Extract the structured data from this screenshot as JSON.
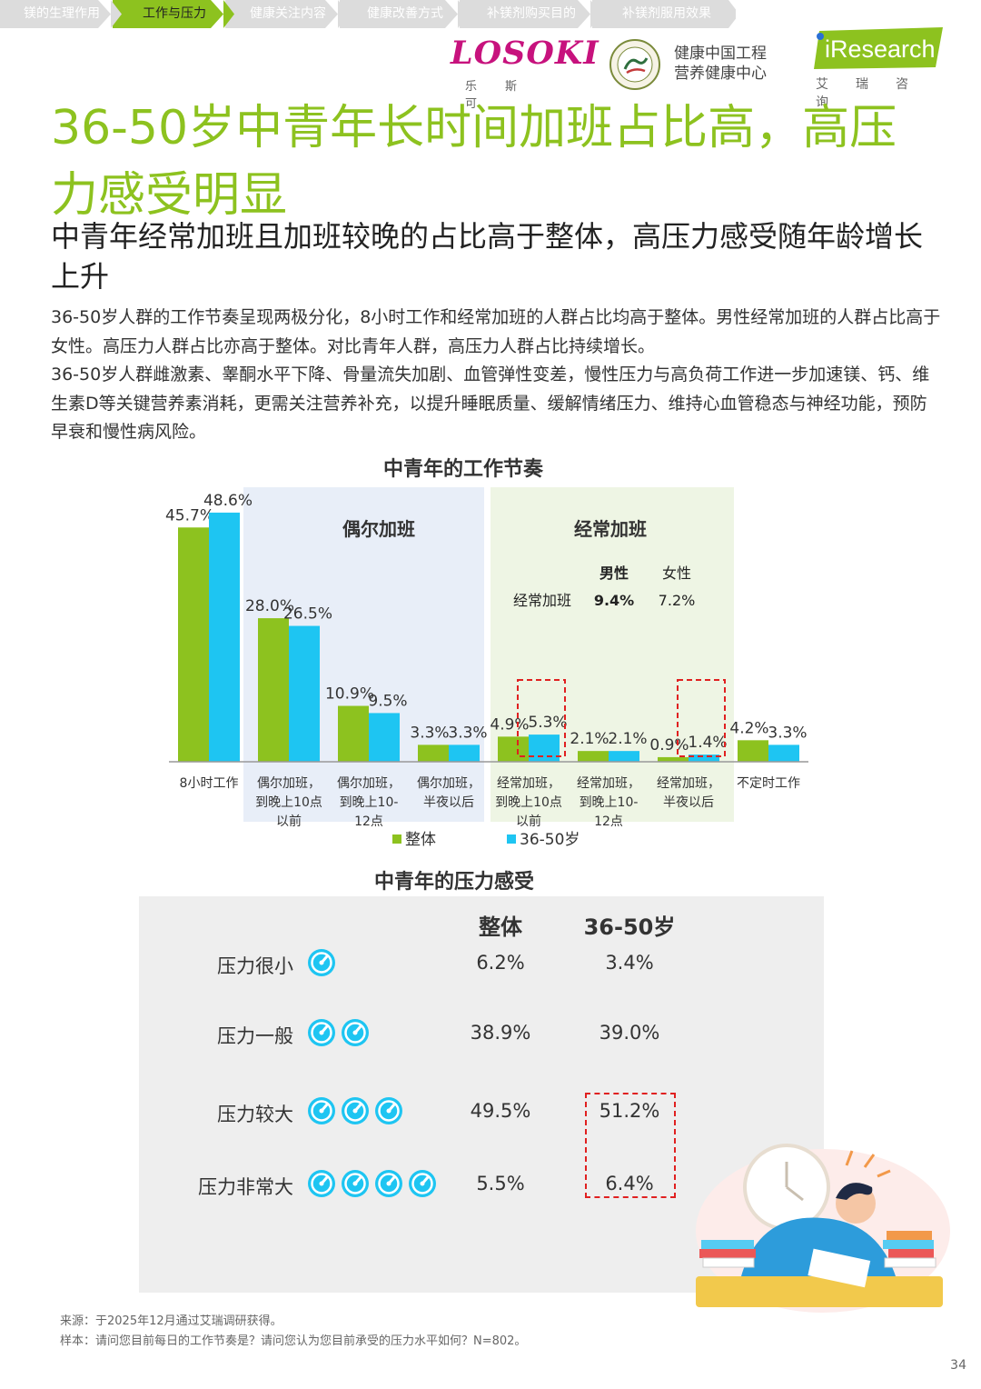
{
  "nav": {
    "tabs": [
      {
        "label": "镁的生理作用",
        "active": false
      },
      {
        "label": "工作与压力",
        "active": true
      },
      {
        "label": "健康关注内容",
        "active": false
      },
      {
        "label": "健康改善方式",
        "active": false
      },
      {
        "label": "补镁剂购买目的",
        "active": false
      },
      {
        "label": "补镁剂服用效果",
        "active": false
      }
    ]
  },
  "brands": {
    "losoki": "LOSOKI",
    "losoki_sub": [
      "乐",
      "斯",
      "可"
    ],
    "seal_text_1": "健康中国工程",
    "seal_text_2": "营养健康中心",
    "iresearch": "iResearch",
    "iresearch_sub": [
      "艾",
      "瑞",
      "咨",
      "询"
    ]
  },
  "headline": "36-50岁中青年长时间加班占比高，高压力感受明显",
  "subheadline": "中青年经常加班且加班较晚的占比高于整体，高压力感受随年龄增长上升",
  "paragraph_1": "36-50岁人群的工作节奏呈现两极分化，8小时工作和经常加班的人群占比均高于整体。男性经常加班的人群占比高于女性。高压力人群占比亦高于整体。对比青年人群，高压力人群占比持续增长。",
  "paragraph_2": "36-50岁人群雌激素、睾酮水平下降、骨量流失加剧、血管弹性变差，慢性压力与高负荷工作进一步加速镁、钙、维生素D等关键营养素消耗，更需关注营养补充，以提升睡眠质量、缓解情绪压力、维持心血管稳态与神经功能，预防早衰和慢性病风险。",
  "chart_data": {
    "type": "bar",
    "title": "中青年的工作节奏",
    "categories": [
      "8小时工作",
      "偶尔加班，到晚上10点以前",
      "偶尔加班，到晚上10-12点",
      "偶尔加班，半夜以后",
      "经常加班，到晚上10点以前",
      "经常加班，到晚上10-12点",
      "经常加班，半夜以后",
      "不定时工作"
    ],
    "category_lines": [
      [
        "8小时工作"
      ],
      [
        "偶尔加班，",
        "到晚上10点",
        "以前"
      ],
      [
        "偶尔加班，",
        "到晚上10-",
        "12点"
      ],
      [
        "偶尔加班，",
        "半夜以后"
      ],
      [
        "经常加班，",
        "到晚上10点",
        "以前"
      ],
      [
        "经常加班，",
        "到晚上10-",
        "12点"
      ],
      [
        "经常加班，",
        "半夜以后"
      ],
      [
        "不定时工作"
      ]
    ],
    "series": [
      {
        "name": "整体",
        "color": "#8dc21f",
        "values": [
          45.7,
          28.0,
          10.9,
          3.3,
          4.9,
          2.1,
          0.9,
          4.2
        ],
        "labels": [
          "45.7%",
          "28.0%",
          "10.9%",
          "3.3%",
          "4.9%",
          "2.1%",
          "0.9%",
          "4.2%"
        ]
      },
      {
        "name": "36-50岁",
        "color": "#1ec5f2",
        "values": [
          48.6,
          26.5,
          9.5,
          3.3,
          5.3,
          2.1,
          1.4,
          3.3
        ],
        "labels": [
          "48.6%",
          "26.5%",
          "9.5%",
          "3.3%",
          "5.3%",
          "2.1%",
          "1.4%",
          "3.3%"
        ]
      }
    ],
    "groups": [
      {
        "label": "偶尔加班",
        "color": "#e8eef8"
      },
      {
        "label": "经常加班",
        "color": "#eef5e4"
      }
    ],
    "highlighted": [
      "经常加班，到晚上10点以前",
      "经常加班，半夜以后"
    ],
    "inset_table": {
      "headers": [
        "男性",
        "女性"
      ],
      "row_label": "经常加班",
      "values": [
        "9.4%",
        "7.2%"
      ]
    },
    "ylim": [
      0,
      50
    ],
    "legend_position": "bottom",
    "grid": false
  },
  "stress": {
    "title": "中青年的压力感受",
    "col_headers": [
      "整体",
      "36-50岁"
    ],
    "rows": [
      {
        "label": "压力很小",
        "level": 1,
        "overall": "6.2%",
        "age": "3.4%"
      },
      {
        "label": "压力一般",
        "level": 2,
        "overall": "38.9%",
        "age": "39.0%"
      },
      {
        "label": "压力较大",
        "level": 3,
        "overall": "49.5%",
        "age": "51.2%"
      },
      {
        "label": "压力非常大",
        "level": 4,
        "overall": "5.5%",
        "age": "6.4%"
      }
    ],
    "gauge_color": "#1ec5f2"
  },
  "footer": {
    "source": "来源：于2025年12月通过艾瑞调研获得。",
    "sample": "样本：请问您目前每日的工作节奏是？请问您认为您目前承受的压力水平如何？N=802。"
  },
  "page_number": "34"
}
